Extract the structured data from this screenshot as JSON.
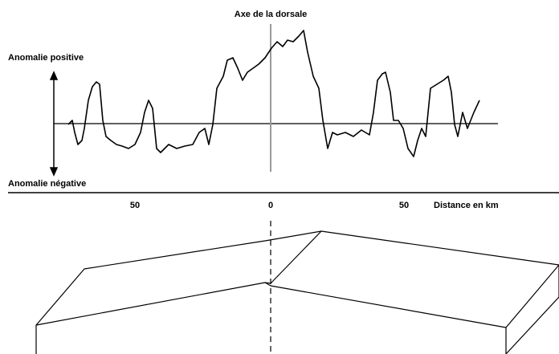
{
  "title": "Axe de la dorsale",
  "labels": {
    "positive": "Anomalie positive",
    "negative": "Anomalie négative"
  },
  "axis": {
    "label": "Distance en km",
    "ticks": [
      "50",
      "0",
      "50"
    ]
  }
}
